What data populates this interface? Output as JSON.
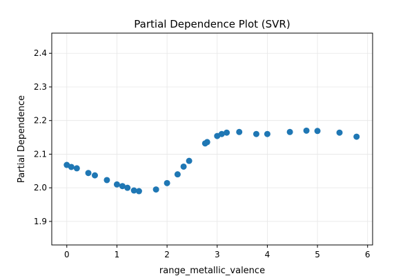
{
  "chart_data": {
    "type": "scatter",
    "title": "Partial Dependence Plot (SVR)",
    "xlabel": "range_metallic_valence",
    "ylabel": "Partial Dependence",
    "xlim": [
      -0.3,
      6.1
    ],
    "ylim": [
      1.83,
      2.46
    ],
    "xticks": [
      "0",
      "1",
      "2",
      "3",
      "4",
      "5",
      "6"
    ],
    "yticks": [
      "1.9",
      "2.0",
      "2.1",
      "2.2",
      "2.3",
      "2.4"
    ],
    "grid": true,
    "marker_color": "#1f77b4",
    "series": [
      {
        "x": [
          0.0,
          0.09,
          0.2,
          0.43,
          0.56,
          0.8,
          1.0,
          1.11,
          1.21,
          1.34,
          1.44,
          1.78,
          2.0,
          2.21,
          2.33,
          2.44,
          2.76,
          2.8,
          3.0,
          3.09,
          3.19,
          3.44,
          3.78,
          4.0,
          4.45,
          4.78,
          5.0,
          5.44,
          5.78
        ],
        "y": [
          2.068,
          2.062,
          2.058,
          2.044,
          2.037,
          2.023,
          2.01,
          2.005,
          2.0,
          1.992,
          1.99,
          1.995,
          2.014,
          2.04,
          2.063,
          2.08,
          2.132,
          2.136,
          2.154,
          2.16,
          2.164,
          2.166,
          2.16,
          2.16,
          2.166,
          2.17,
          2.169,
          2.164,
          2.152
        ]
      }
    ]
  }
}
